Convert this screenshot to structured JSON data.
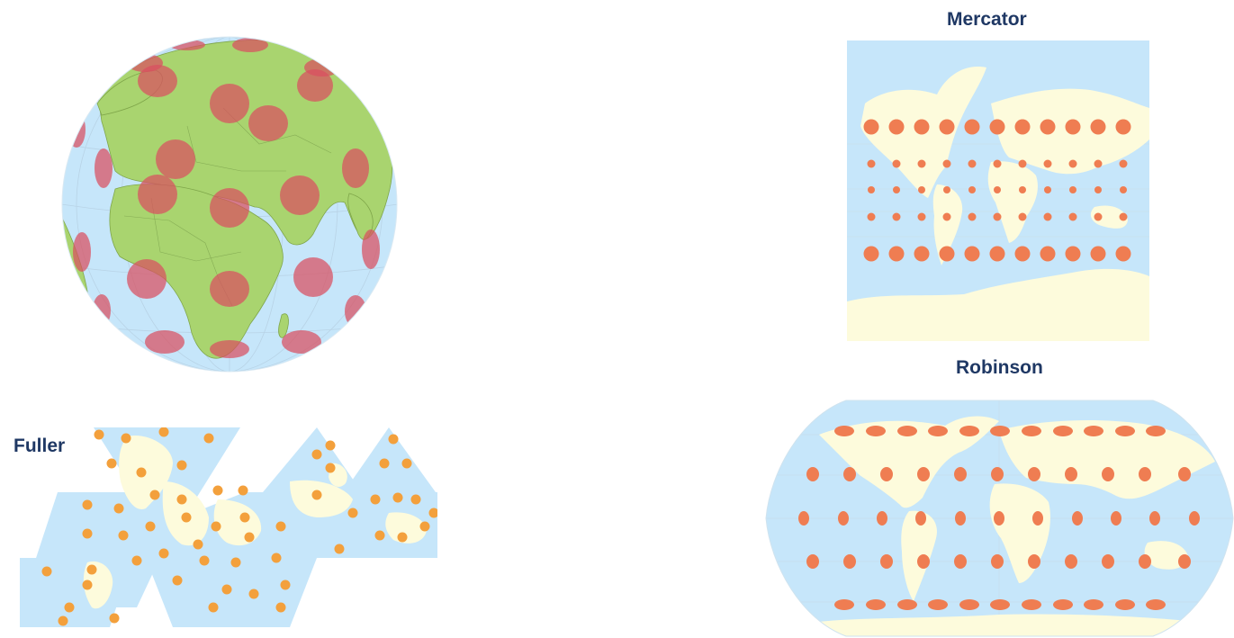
{
  "labels": {
    "mercator": "Mercator",
    "robinson": "Robinson",
    "fuller": "Fuller"
  },
  "colors": {
    "ocean": "#c6e6fa",
    "land_orthographic": "#a9d46f",
    "land_other": "#fdfbdc",
    "indicatrix_orthographic": "#d94f5f",
    "indicatrix_mercator": "#ef7d52",
    "indicatrix_robinson": "#ef7d52",
    "indicatrix_fuller": "#f3a03c",
    "graticule": "#a9c7dc",
    "title_text": "#1f3864"
  },
  "maps": [
    {
      "name": "orthographic-globe",
      "projection": "Orthographic",
      "indicatrix": "Tissot circles"
    },
    {
      "name": "mercator-map",
      "projection": "Mercator",
      "indicatrix": "Tissot circles"
    },
    {
      "name": "robinson-map",
      "projection": "Robinson",
      "indicatrix": "Tissot circles"
    },
    {
      "name": "fuller-map",
      "projection": "Fuller (Dymaxion)",
      "indicatrix": "Tissot circles"
    }
  ]
}
